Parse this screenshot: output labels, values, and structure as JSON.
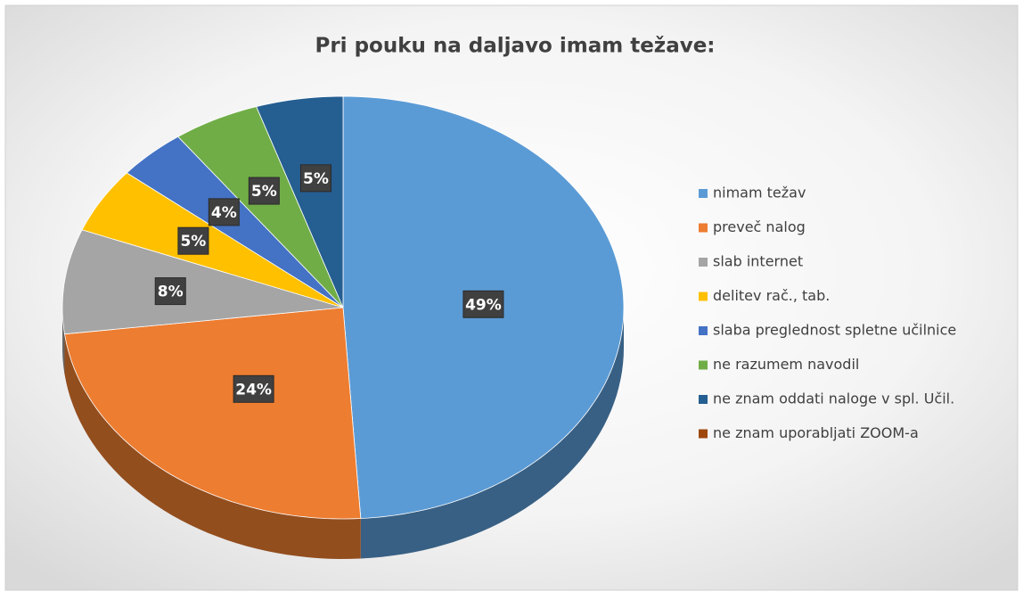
{
  "chart_data": {
    "type": "pie",
    "title": "Pri pouku na daljavo imam težave:",
    "categories": [
      "nimam težav",
      "preveč nalog",
      "slab internet",
      "delitev rač., tab.",
      "slaba preglednost spletne učilnice",
      "ne razumem navodil",
      "ne znam oddati naloge v spl. Učil.",
      "ne znam uporabljati ZOOM-a"
    ],
    "values": [
      49,
      24,
      8,
      5,
      4,
      5,
      5,
      0
    ],
    "value_labels": [
      "49%",
      "24%",
      "8%",
      "5%",
      "4%",
      "5%",
      "5%",
      null
    ],
    "colors": [
      "#5b9bd5",
      "#ed7d31",
      "#a5a5a5",
      "#ffc000",
      "#4472c4",
      "#70ad47",
      "#255e91",
      "#9e480e"
    ],
    "legend": "right"
  }
}
